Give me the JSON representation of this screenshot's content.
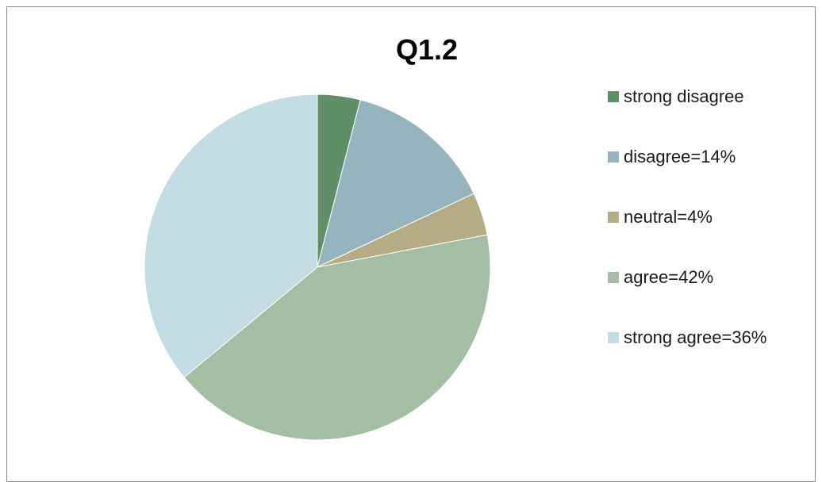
{
  "chart_data": {
    "type": "pie",
    "title": "Q1.2",
    "legend_position": "right",
    "series": [
      {
        "values": [
          4,
          14,
          4,
          42,
          36
        ],
        "categories": [
          "strong disagree",
          "disagree=14%",
          "neutral=4%",
          "agree=42%",
          "strong agree=36%"
        ]
      }
    ],
    "categories": [
      "strong disagree",
      "disagree=14%",
      "neutral=4%",
      "agree=42%",
      "strong agree=36%"
    ],
    "values": [
      4,
      14,
      4,
      42,
      36
    ],
    "colors": [
      "#5f8f66",
      "#96b4bd",
      "#b5ab84",
      "#a3bea3",
      "#c3dbe2"
    ],
    "start_angle": "12 o'clock",
    "direction": "clockwise"
  }
}
